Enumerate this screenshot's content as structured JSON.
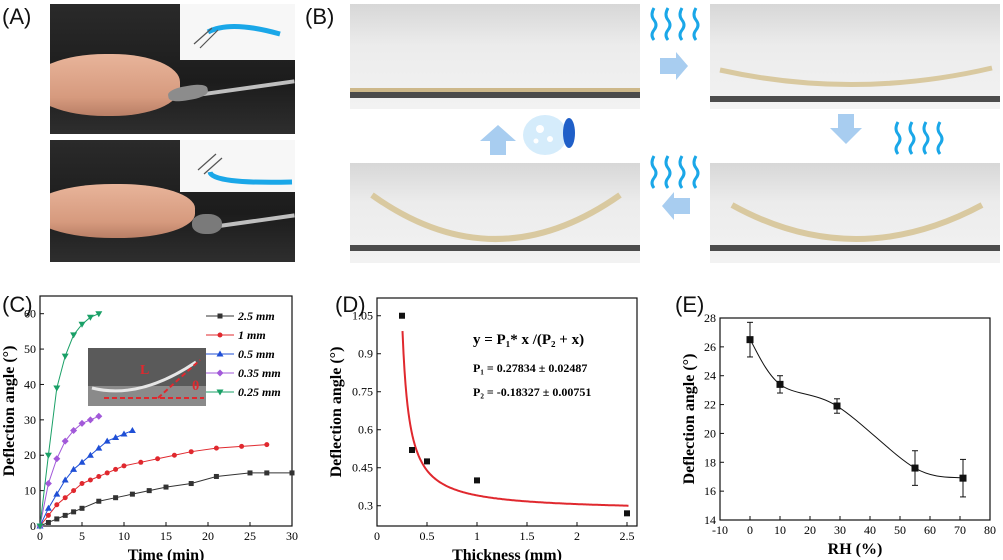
{
  "panels": {
    "a": "(A)",
    "b": "(B)",
    "c": "(C)",
    "d": "(D)",
    "e": "(E)"
  },
  "colors": {
    "black_series": "#333333",
    "red": "#e0282e",
    "blue": "#1f4fd6",
    "purple": "#a259d9",
    "green": "#1aa067",
    "arrow_blue": "#a8cdf0",
    "wave_blue": "#1aa7e8"
  },
  "chart_data": [
    {
      "id": "C",
      "type": "line",
      "xlabel": "Time (min)",
      "ylabel": "Deflection angle (°)",
      "xlim": [
        0,
        30
      ],
      "ylim": [
        0,
        65
      ],
      "xticks": [
        0,
        5,
        10,
        15,
        20,
        25,
        30
      ],
      "yticks": [
        0,
        10,
        20,
        30,
        40,
        50,
        60
      ],
      "legend_position": "top-right",
      "inset_labels": [
        "L",
        "θ"
      ],
      "series": [
        {
          "name": "2.5 mm",
          "color": "#333333",
          "marker": "square",
          "x": [
            0,
            1,
            2,
            3,
            4,
            5,
            7,
            9,
            11,
            13,
            15,
            18,
            21,
            25,
            27,
            30
          ],
          "y": [
            0,
            1,
            2,
            3,
            4,
            5,
            7,
            8,
            9,
            10,
            11,
            12,
            14,
            15,
            15,
            15
          ]
        },
        {
          "name": "1 mm",
          "color": "#e0282e",
          "marker": "circle",
          "x": [
            0,
            1,
            2,
            3,
            4,
            5,
            6,
            7,
            8,
            9,
            10,
            12,
            14,
            16,
            18,
            21,
            24,
            27
          ],
          "y": [
            0,
            3,
            6,
            8,
            10,
            12,
            13,
            14,
            15,
            16,
            17,
            18,
            19,
            20,
            21,
            22,
            22.5,
            23
          ]
        },
        {
          "name": "0.5 mm",
          "color": "#1f4fd6",
          "marker": "triangle",
          "x": [
            0,
            1,
            2,
            3,
            4,
            5,
            6,
            7,
            8,
            9,
            10,
            11
          ],
          "y": [
            0,
            5,
            9,
            13,
            16,
            18,
            20,
            22,
            24,
            25,
            26,
            27
          ]
        },
        {
          "name": "0.35 mm",
          "color": "#a259d9",
          "marker": "diamond",
          "x": [
            0,
            1,
            2,
            3,
            4,
            5,
            6,
            7
          ],
          "y": [
            0,
            12,
            19,
            24,
            27,
            29,
            30,
            31
          ]
        },
        {
          "name": "0.25 mm",
          "color": "#1aa067",
          "marker": "triangle-down",
          "x": [
            0,
            1,
            2,
            3,
            4,
            5,
            6,
            7
          ],
          "y": [
            0,
            20,
            39,
            48,
            54,
            57,
            59,
            60
          ]
        }
      ]
    },
    {
      "id": "D",
      "type": "scatter",
      "xlabel": "Thickness (mm)",
      "ylabel": "Deflection angle (°)",
      "xlim": [
        0,
        2.6
      ],
      "ylim": [
        0.22,
        1.12
      ],
      "xticks": [
        0,
        0.5,
        1,
        1.5,
        2,
        2.5
      ],
      "xtick_labels": [
        "0",
        "0.5",
        "1",
        "1.5",
        "2",
        "2.5"
      ],
      "yticks": [
        0.3,
        0.45,
        0.6,
        0.75,
        0.9,
        1.05
      ],
      "ytick_labels": [
        "0.3",
        "0.45",
        "0.6",
        "0.75",
        "0.9",
        "1.05"
      ],
      "points": {
        "x": [
          0.25,
          0.35,
          0.5,
          1.0,
          2.5
        ],
        "y": [
          1.05,
          0.52,
          0.475,
          0.4,
          0.27
        ]
      },
      "fit": {
        "P1": 0.27834,
        "P2": -0.18327,
        "color": "#e0282e"
      },
      "annotations": [
        "y = P₁* x /(P₂ + x)",
        "P₁ = 0.27834 ± 0.02487",
        "P₂ = -0.18327 ± 0.00751"
      ]
    },
    {
      "id": "E",
      "type": "scatter",
      "xlabel": "RH (%)",
      "ylabel": "Deflection angle (°)",
      "xlim": [
        -10,
        80
      ],
      "ylim": [
        14,
        28
      ],
      "xticks": [
        -10,
        0,
        10,
        20,
        30,
        40,
        50,
        60,
        70,
        80
      ],
      "yticks": [
        14,
        16,
        18,
        20,
        22,
        24,
        26,
        28
      ],
      "points": {
        "x": [
          0,
          10,
          29,
          55,
          71
        ],
        "y": [
          26.5,
          23.4,
          21.9,
          17.6,
          16.9
        ]
      },
      "errors": [
        1.2,
        0.6,
        0.5,
        1.2,
        1.3
      ],
      "smooth_line": true
    }
  ]
}
